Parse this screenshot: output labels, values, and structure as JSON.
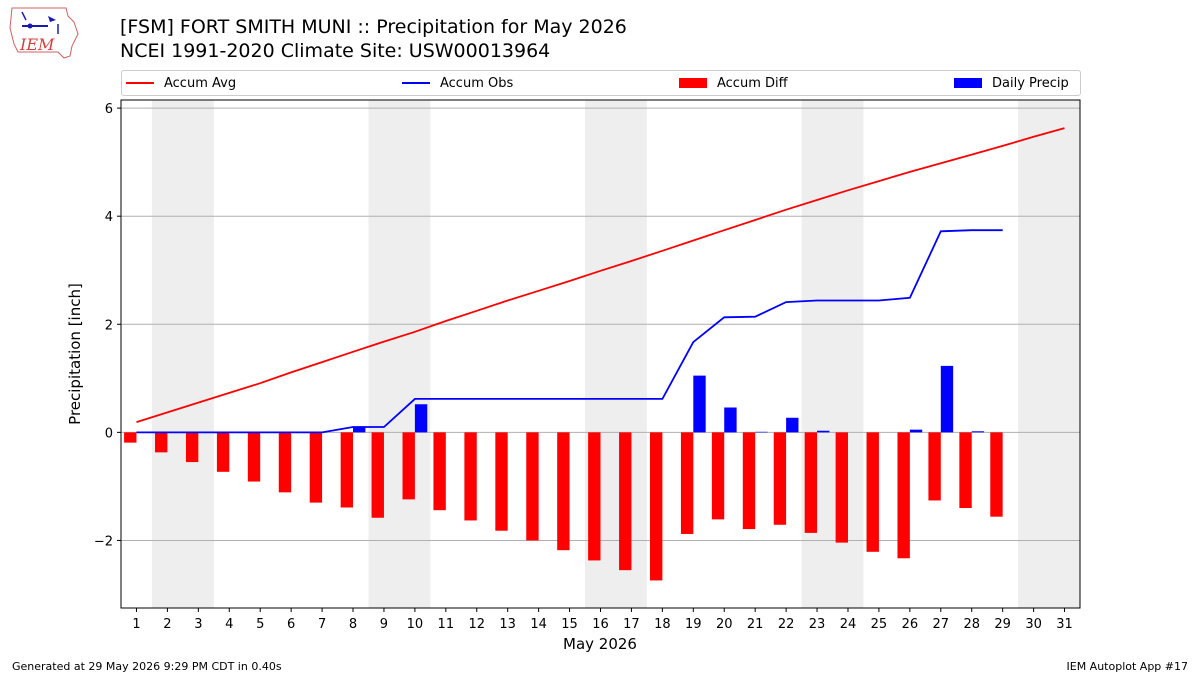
{
  "title": "[FSM] FORT SMITH MUNI :: Precipitation for May 2026",
  "subtitle": "NCEI 1991-2020 Climate Site: USW00013964",
  "logo_text": "IEM",
  "footer": {
    "left": "Generated at 29 May 2026 9:29 PM CDT in 0.40s",
    "right": "IEM Autoplot App #17"
  },
  "legend": [
    {
      "label": "Accum Avg",
      "color": "#ff0000",
      "kind": "line"
    },
    {
      "label": "Accum Obs",
      "color": "#0000ff",
      "kind": "line"
    },
    {
      "label": "Accum Diff",
      "color": "#ff0000",
      "kind": "bar"
    },
    {
      "label": "Daily Precip",
      "color": "#0000ff",
      "kind": "bar"
    }
  ],
  "chart_data": {
    "type": "bar",
    "xlabel": "May 2026",
    "ylabel": "Precipitation [inch]",
    "xlim": [
      0.5,
      31.5
    ],
    "ylim": [
      -3.25,
      6.15
    ],
    "yticks": [
      -2,
      0,
      2,
      4,
      6
    ],
    "ytick_labels": [
      "−2",
      "0",
      "2",
      "4",
      "6"
    ],
    "xticks": [
      1,
      2,
      3,
      4,
      5,
      6,
      7,
      8,
      9,
      10,
      11,
      12,
      13,
      14,
      15,
      16,
      17,
      18,
      19,
      20,
      21,
      22,
      23,
      24,
      25,
      26,
      27,
      28,
      29,
      30,
      31
    ],
    "grid": "horizontal",
    "legend_position": "top",
    "weekend_shading": [
      [
        2,
        3
      ],
      [
        9,
        10
      ],
      [
        16,
        17
      ],
      [
        23,
        24
      ],
      [
        30,
        31
      ]
    ],
    "series": [
      {
        "name": "Accum Avg",
        "type": "line",
        "color": "#ff0000",
        "x": [
          1,
          2,
          3,
          4,
          5,
          6,
          7,
          8,
          9,
          10,
          11,
          12,
          13,
          14,
          15,
          16,
          17,
          18,
          19,
          20,
          21,
          22,
          23,
          24,
          25,
          26,
          27,
          28,
          29,
          30,
          31
        ],
        "values": [
          0.19,
          0.37,
          0.55,
          0.73,
          0.91,
          1.11,
          1.3,
          1.49,
          1.68,
          1.86,
          2.06,
          2.25,
          2.44,
          2.62,
          2.8,
          2.99,
          3.17,
          3.36,
          3.55,
          3.74,
          3.93,
          4.12,
          4.3,
          4.48,
          4.65,
          4.82,
          4.98,
          5.14,
          5.3,
          5.47,
          5.63
        ]
      },
      {
        "name": "Accum Obs",
        "type": "line",
        "color": "#0000ff",
        "x": [
          1,
          2,
          3,
          4,
          5,
          6,
          7,
          8,
          9,
          10,
          11,
          12,
          13,
          14,
          15,
          16,
          17,
          18,
          19,
          20,
          21,
          22,
          23,
          24,
          25,
          26,
          27,
          28,
          29
        ],
        "values": [
          0,
          0,
          0,
          0,
          0,
          0,
          0,
          0.1,
          0.1,
          0.62,
          0.62,
          0.62,
          0.62,
          0.62,
          0.62,
          0.62,
          0.62,
          0.62,
          1.67,
          2.13,
          2.14,
          2.41,
          2.44,
          2.44,
          2.44,
          2.49,
          3.72,
          3.74,
          3.74
        ]
      },
      {
        "name": "Accum Diff",
        "type": "bar",
        "color": "#ff0000",
        "x": [
          1,
          2,
          3,
          4,
          5,
          6,
          7,
          8,
          9,
          10,
          11,
          12,
          13,
          14,
          15,
          16,
          17,
          18,
          19,
          20,
          21,
          22,
          23,
          24,
          25,
          26,
          27,
          28,
          29
        ],
        "values": [
          -0.19,
          -0.37,
          -0.55,
          -0.73,
          -0.91,
          -1.11,
          -1.3,
          -1.39,
          -1.58,
          -1.24,
          -1.44,
          -1.63,
          -1.82,
          -2.0,
          -2.18,
          -2.37,
          -2.55,
          -2.74,
          -1.88,
          -1.61,
          -1.79,
          -1.71,
          -1.86,
          -2.04,
          -2.21,
          -2.33,
          -1.26,
          -1.4,
          -1.56
        ]
      },
      {
        "name": "Daily Precip",
        "type": "bar",
        "color": "#0000ff",
        "x": [
          1,
          2,
          3,
          4,
          5,
          6,
          7,
          8,
          9,
          10,
          11,
          12,
          13,
          14,
          15,
          16,
          17,
          18,
          19,
          20,
          21,
          22,
          23,
          24,
          25,
          26,
          27,
          28,
          29
        ],
        "values": [
          0,
          0,
          0,
          0,
          0,
          0,
          0,
          0.1,
          0,
          0.52,
          0,
          0,
          0,
          0,
          0,
          0,
          0,
          0,
          1.05,
          0.46,
          0.01,
          0.27,
          0.03,
          0,
          0,
          0.05,
          1.23,
          0.02,
          0
        ]
      }
    ]
  }
}
